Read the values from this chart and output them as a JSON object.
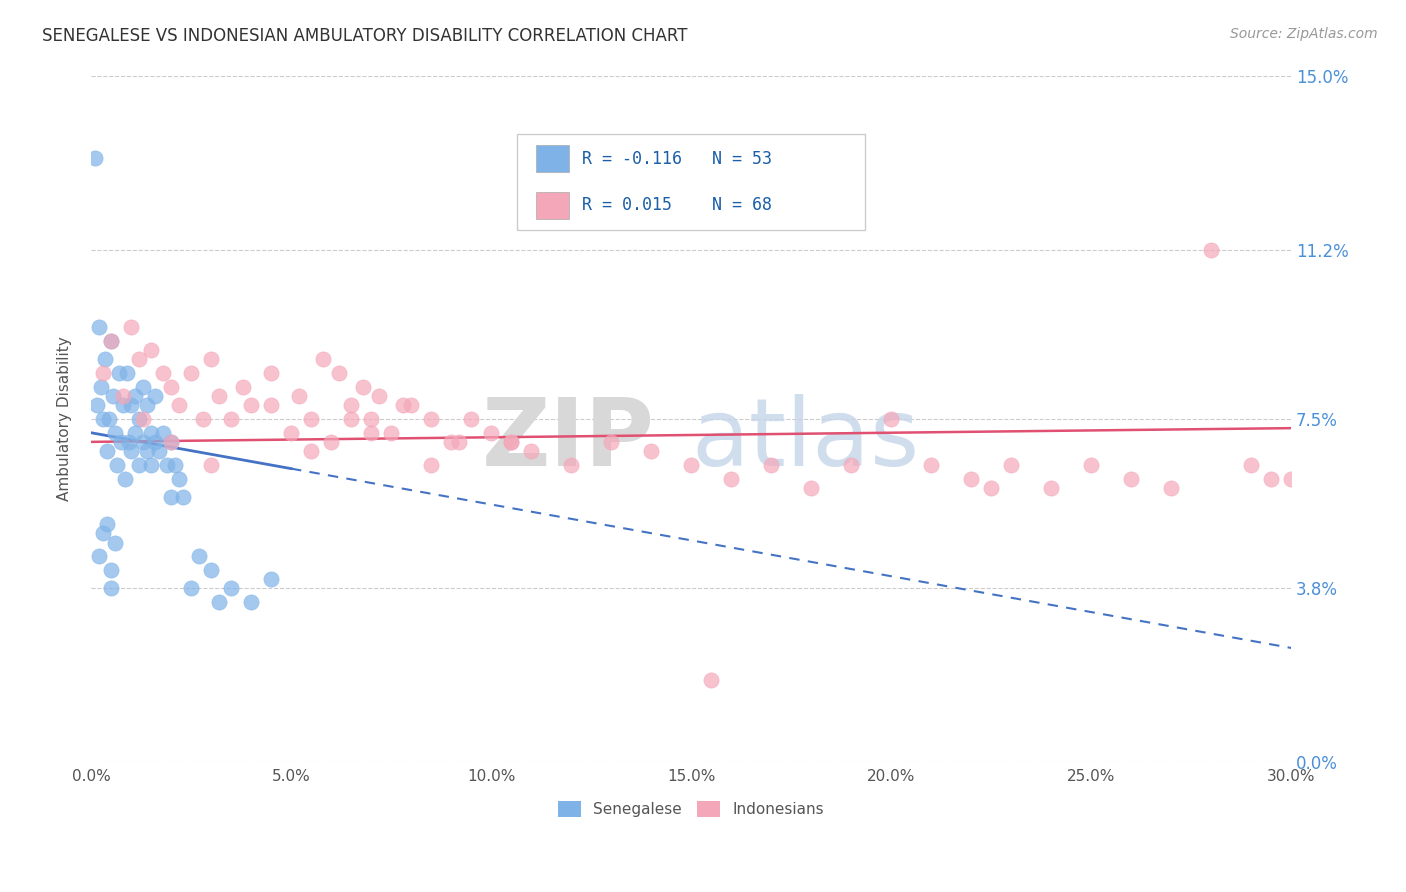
{
  "title": "SENEGALESE VS INDONESIAN AMBULATORY DISABILITY CORRELATION CHART",
  "source": "Source: ZipAtlas.com",
  "xlabel_ticks": [
    "0.0%",
    "5.0%",
    "10.0%",
    "15.0%",
    "20.0%",
    "25.0%",
    "30.0%"
  ],
  "xlabel_vals": [
    0.0,
    5.0,
    10.0,
    15.0,
    20.0,
    25.0,
    30.0
  ],
  "ylabel_ticks": [
    "0.0%",
    "3.8%",
    "7.5%",
    "11.2%",
    "15.0%"
  ],
  "ylabel_vals": [
    0.0,
    3.8,
    7.5,
    11.2,
    15.0
  ],
  "xlim": [
    0.0,
    30.0
  ],
  "ylim": [
    0.0,
    15.0
  ],
  "blue_color": "#7fb3e8",
  "blue_line_color": "#4472c4",
  "pink_color": "#f4a7b9",
  "pink_line_color": "#e05070",
  "blue_label": "Senegalese",
  "pink_label": "Indonesians",
  "legend_r_blue": "R = -0.116",
  "legend_n_blue": "N = 53",
  "legend_r_pink": "R = 0.015",
  "legend_n_pink": "N = 68",
  "watermark_zip": "ZIP",
  "watermark_atlas": "atlas",
  "blue_scatter_x": [
    0.1,
    0.15,
    0.2,
    0.25,
    0.3,
    0.35,
    0.4,
    0.45,
    0.5,
    0.55,
    0.6,
    0.65,
    0.7,
    0.75,
    0.8,
    0.85,
    0.9,
    0.95,
    1.0,
    1.0,
    1.1,
    1.1,
    1.2,
    1.2,
    1.3,
    1.3,
    1.4,
    1.4,
    1.5,
    1.5,
    1.6,
    1.6,
    1.7,
    1.8,
    1.9,
    2.0,
    2.0,
    2.1,
    2.2,
    2.3,
    2.5,
    2.7,
    3.0,
    3.2,
    3.5,
    4.0,
    4.5,
    0.2,
    0.3,
    0.4,
    0.5,
    0.5,
    0.6
  ],
  "blue_scatter_y": [
    13.2,
    7.8,
    9.5,
    8.2,
    7.5,
    8.8,
    6.8,
    7.5,
    9.2,
    8.0,
    7.2,
    6.5,
    8.5,
    7.0,
    7.8,
    6.2,
    8.5,
    7.0,
    6.8,
    7.8,
    7.2,
    8.0,
    6.5,
    7.5,
    7.0,
    8.2,
    6.8,
    7.8,
    7.2,
    6.5,
    7.0,
    8.0,
    6.8,
    7.2,
    6.5,
    7.0,
    5.8,
    6.5,
    6.2,
    5.8,
    3.8,
    4.5,
    4.2,
    3.5,
    3.8,
    3.5,
    4.0,
    4.5,
    5.0,
    5.2,
    3.8,
    4.2,
    4.8
  ],
  "pink_scatter_x": [
    0.3,
    0.5,
    0.8,
    1.0,
    1.2,
    1.5,
    1.8,
    2.0,
    2.2,
    2.5,
    2.8,
    3.0,
    3.2,
    3.5,
    3.8,
    4.0,
    4.5,
    5.0,
    5.2,
    5.5,
    5.8,
    6.0,
    6.2,
    6.5,
    6.8,
    7.0,
    7.2,
    7.5,
    8.0,
    8.5,
    9.0,
    9.5,
    10.0,
    10.5,
    11.0,
    12.0,
    13.0,
    14.0,
    15.0,
    16.0,
    17.0,
    18.0,
    19.0,
    20.0,
    21.0,
    22.0,
    23.0,
    24.0,
    25.0,
    26.0,
    27.0,
    28.0,
    29.0,
    30.0,
    1.3,
    2.0,
    3.0,
    4.5,
    5.5,
    6.5,
    7.0,
    15.5,
    22.5,
    29.5,
    10.5,
    7.8,
    8.5,
    9.2
  ],
  "pink_scatter_y": [
    8.5,
    9.2,
    8.0,
    9.5,
    8.8,
    9.0,
    8.5,
    8.2,
    7.8,
    8.5,
    7.5,
    8.8,
    8.0,
    7.5,
    8.2,
    7.8,
    8.5,
    7.2,
    8.0,
    7.5,
    8.8,
    7.0,
    8.5,
    7.8,
    8.2,
    7.5,
    8.0,
    7.2,
    7.8,
    7.5,
    7.0,
    7.5,
    7.2,
    7.0,
    6.8,
    6.5,
    7.0,
    6.8,
    6.5,
    6.2,
    6.5,
    6.0,
    6.5,
    7.5,
    6.5,
    6.2,
    6.5,
    6.0,
    6.5,
    6.2,
    6.0,
    11.2,
    6.5,
    6.2,
    7.5,
    7.0,
    6.5,
    7.8,
    6.8,
    7.5,
    7.2,
    1.8,
    6.0,
    6.2,
    7.0,
    7.8,
    6.5,
    7.0
  ],
  "blue_trendline_x0": 0.0,
  "blue_trendline_y0": 7.2,
  "blue_trendline_x1": 30.0,
  "blue_trendline_y1": 2.5,
  "pink_trendline_x0": 0.0,
  "pink_trendline_y0": 7.0,
  "pink_trendline_x1": 30.0,
  "pink_trendline_y1": 7.3
}
